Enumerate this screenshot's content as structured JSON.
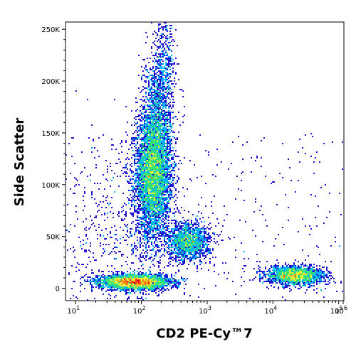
{
  "chart_data": {
    "type": "scatter",
    "title": "",
    "xlabel": "CD2 PE-Cy™7",
    "ylabel": "Side Scatter",
    "x_scale": "log",
    "xlim": [
      7,
      120000
    ],
    "ylim": [
      -12000,
      257000
    ],
    "x_ticks": [
      {
        "value": 10,
        "base": "10",
        "exp": "1"
      },
      {
        "value": 100,
        "base": "10",
        "exp": "2"
      },
      {
        "value": 1000,
        "base": "10",
        "exp": "3"
      },
      {
        "value": 10000,
        "base": "10",
        "exp": "4"
      },
      {
        "value": 100000,
        "base": "10",
        "exp": "5"
      },
      {
        "value": 1000000,
        "base": "10",
        "exp": "6"
      }
    ],
    "y_ticks": [
      {
        "value": 0,
        "label": "0"
      },
      {
        "value": 50000,
        "label": "50K"
      },
      {
        "value": 100000,
        "label": "100K"
      },
      {
        "value": 150000,
        "label": "150K"
      },
      {
        "value": 200000,
        "label": "200K"
      },
      {
        "value": 250000,
        "label": "250K"
      }
    ],
    "grid": false,
    "legend": "none",
    "colors": [
      "#1e14d2",
      "#00b4ff",
      "#39e07a",
      "#e9f13a",
      "#ff7a10",
      "#e8141a"
    ],
    "clusters": [
      {
        "name_hidden": "",
        "x_center": 150,
        "y_center": 110000,
        "x_spread_decades": 0.13,
        "y_spread": 30000,
        "count": 5200
      },
      {
        "x_center": 180,
        "y_center": 170000,
        "x_spread_decades": 0.12,
        "y_spread": 30000,
        "count": 1200
      },
      {
        "x_center": 230,
        "y_center": 220000,
        "x_spread_decades": 0.08,
        "y_spread": 22000,
        "count": 280
      },
      {
        "x_center": 520,
        "y_center": 45000,
        "x_spread_decades": 0.16,
        "y_spread": 9000,
        "count": 1500
      },
      {
        "x_center": 80,
        "y_center": 6000,
        "x_spread_decades": 0.26,
        "y_spread": 3500,
        "count": 3500
      },
      {
        "x_center": 22000,
        "y_center": 12000,
        "x_spread_decades": 0.22,
        "y_spread": 4500,
        "count": 2000
      },
      {
        "x_center": 60,
        "y_center": 60000,
        "x_spread_decades": 0.6,
        "y_spread": 40000,
        "count": 600
      }
    ]
  }
}
